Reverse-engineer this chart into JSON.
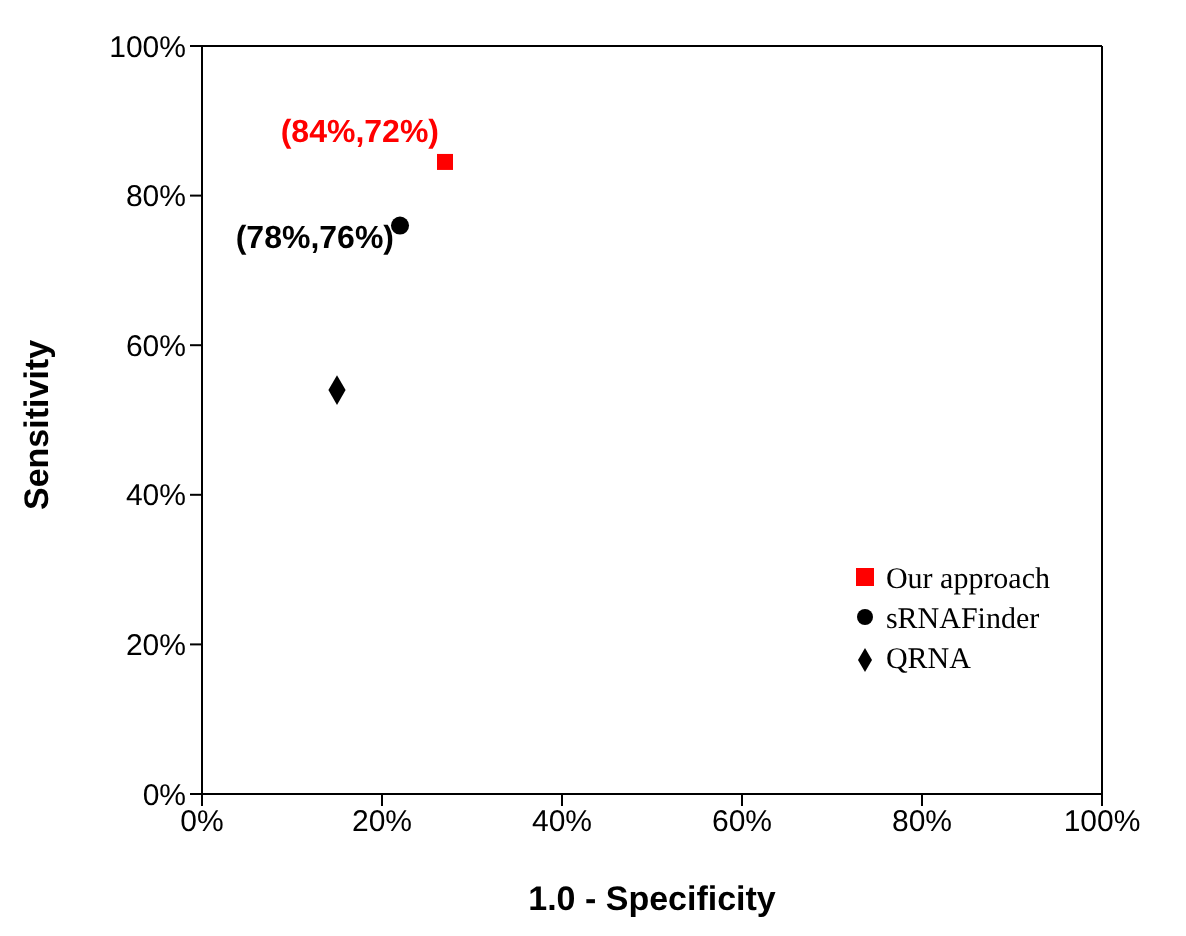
{
  "chart_data": {
    "type": "scatter",
    "xlabel": "1.0 - Specificity",
    "ylabel": "Sensitivity",
    "xlim": [
      0,
      100
    ],
    "ylim": [
      0,
      100
    ],
    "xticks": [
      {
        "value": 0,
        "label": "0%"
      },
      {
        "value": 20,
        "label": "20%"
      },
      {
        "value": 40,
        "label": "40%"
      },
      {
        "value": 60,
        "label": "60%"
      },
      {
        "value": 80,
        "label": "80%"
      },
      {
        "value": 100,
        "label": "100%"
      }
    ],
    "yticks": [
      {
        "value": 0,
        "label": "0%"
      },
      {
        "value": 20,
        "label": "20%"
      },
      {
        "value": 40,
        "label": "40%"
      },
      {
        "value": 60,
        "label": "60%"
      },
      {
        "value": 80,
        "label": "80%"
      },
      {
        "value": 100,
        "label": "100%"
      }
    ],
    "series": [
      {
        "name": "Our approach",
        "color": "#ff0000",
        "marker": "square",
        "x": [
          27
        ],
        "values": [
          84.5
        ]
      },
      {
        "name": "sRNAFinder",
        "color": "#000000",
        "marker": "circle",
        "x": [
          22
        ],
        "values": [
          76
        ]
      },
      {
        "name": "QRNA",
        "color": "#000000",
        "marker": "diamond",
        "x": [
          15
        ],
        "values": [
          54
        ]
      }
    ],
    "annotations": [
      {
        "text": "(84%,72%)",
        "x": 27,
        "y": 84.5
      },
      {
        "text": "(78%,76%)",
        "x": 22,
        "y": 76
      }
    ],
    "legend": "bottom right",
    "grid": false
  }
}
